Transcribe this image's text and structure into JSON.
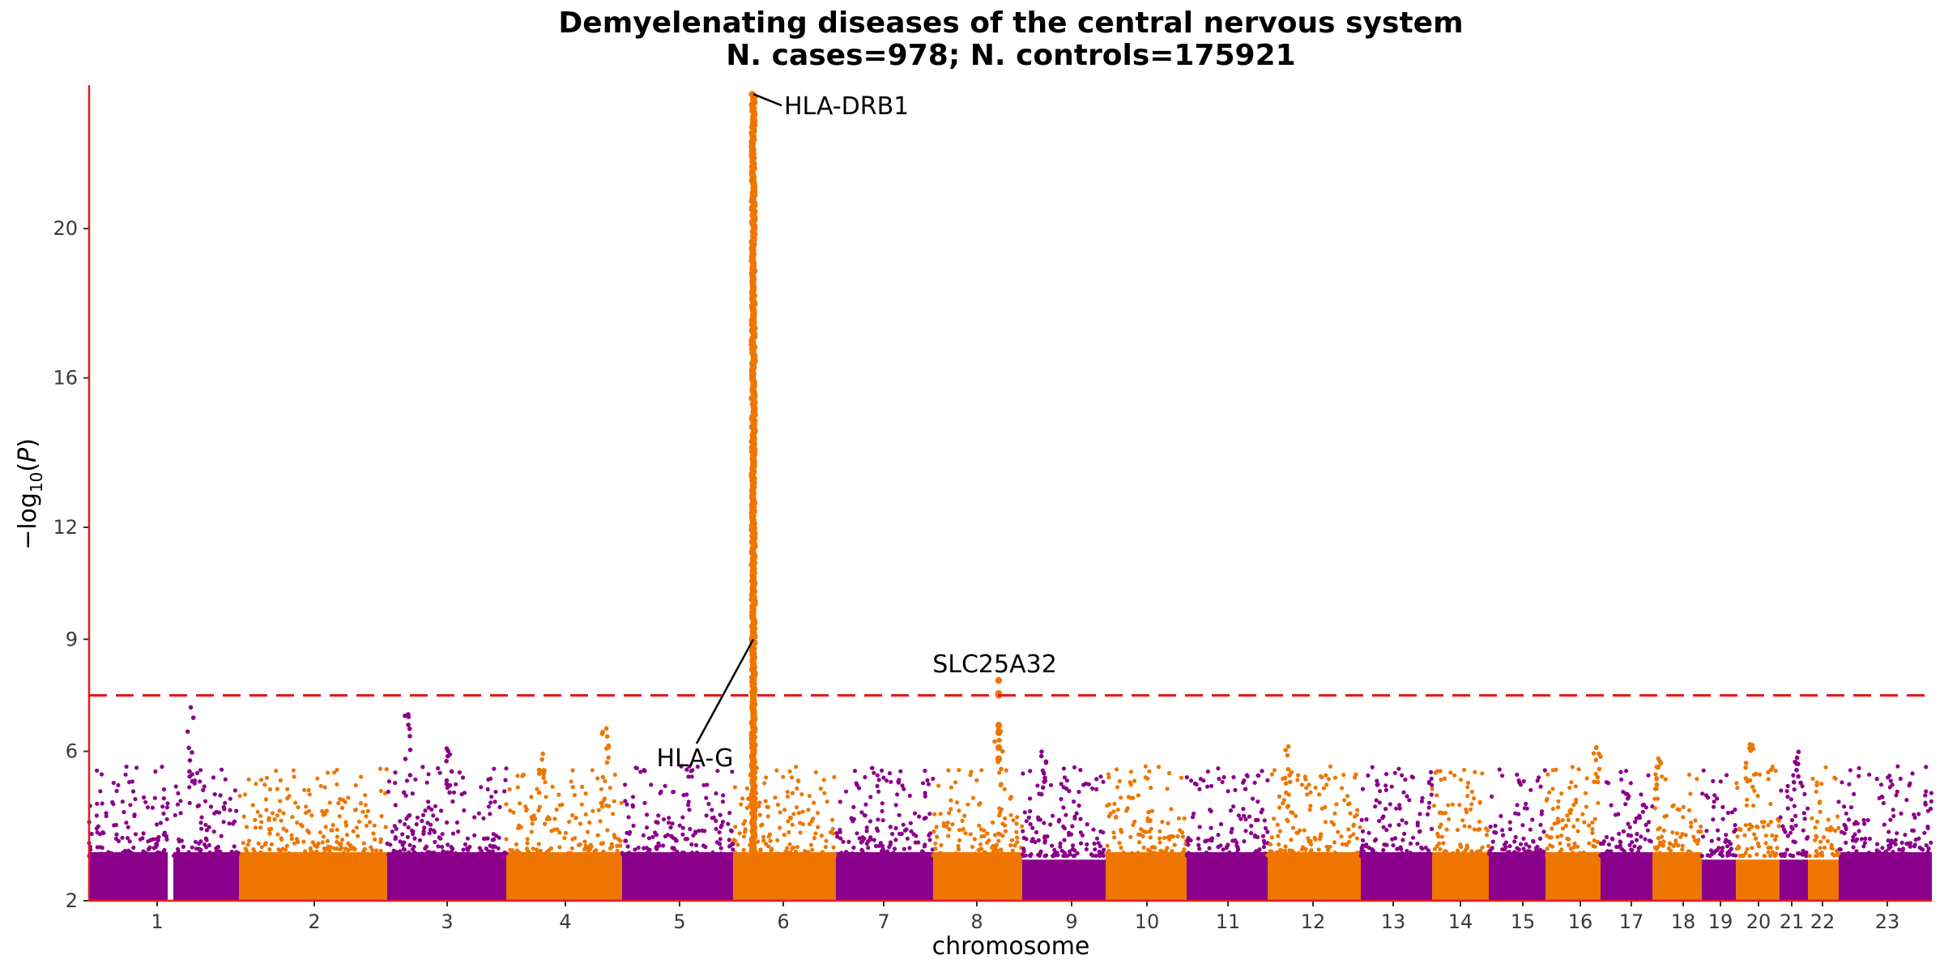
{
  "chart_data": {
    "type": "scatter",
    "subtype": "manhattan",
    "title": "Demyelenating diseases of the central nervous system",
    "subtitle": "N. cases=978; N. controls=175921",
    "xlabel": "chromosome",
    "ylabel": "-log10(P)",
    "y_ticks": [
      2,
      6,
      9,
      12,
      16,
      20
    ],
    "ylim": [
      2,
      23.8
    ],
    "significance_line": 7.5,
    "chromosomes": [
      "1",
      "2",
      "3",
      "4",
      "5",
      "6",
      "7",
      "8",
      "9",
      "10",
      "11",
      "12",
      "13",
      "14",
      "15",
      "16",
      "17",
      "18",
      "19",
      "20",
      "21",
      "22",
      "23"
    ],
    "colors": {
      "odd": "#8B008B",
      "even": "#EE7600",
      "axis": "#E41A1C",
      "threshold": "#E41A1C"
    },
    "grid": false,
    "annotations": [
      {
        "label": "HLA-DRB1",
        "chromosome": "6",
        "value": 23.6
      },
      {
        "label": "HLA-G",
        "chromosome": "6",
        "value": 9.0
      },
      {
        "label": "SLC25A32",
        "chromosome": "8",
        "value": 7.9
      }
    ],
    "peaks": [
      {
        "chromosome": "1",
        "max": 7.3
      },
      {
        "chromosome": "3",
        "max": 7.3
      },
      {
        "chromosome": "4",
        "max": 6.7
      },
      {
        "chromosome": "6",
        "max": 23.6
      },
      {
        "chromosome": "8",
        "max": 7.9
      },
      {
        "chromosome": "9",
        "max": 6.0
      },
      {
        "chromosome": "12",
        "max": 6.2
      },
      {
        "chromosome": "16",
        "max": 6.3
      },
      {
        "chromosome": "18",
        "max": 6.0
      },
      {
        "chromosome": "20",
        "max": 6.2
      }
    ]
  }
}
